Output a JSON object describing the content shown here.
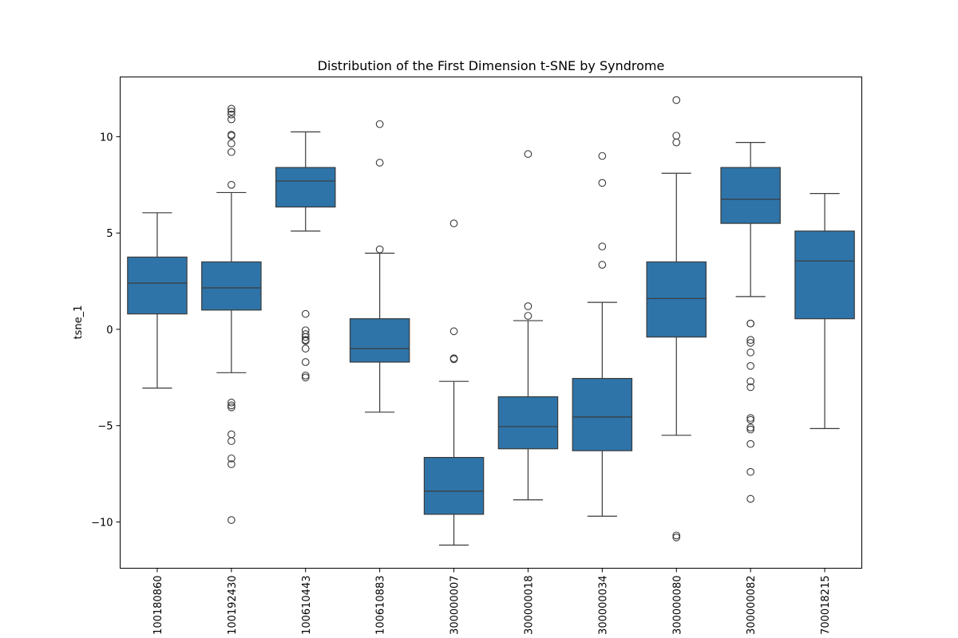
{
  "chart_data": {
    "type": "box",
    "title": "Distribution of the First Dimension t-SNE by Syndrome",
    "xlabel": "",
    "ylabel": "tsne_1",
    "ylim": [
      -12.4,
      13.1
    ],
    "yticks": [
      10,
      5,
      0,
      -5,
      -10
    ],
    "grid": false,
    "colors": {
      "box_fill": "#2e74a8",
      "line": "#3a3a3a",
      "axis": "#000000"
    },
    "categories": [
      "100180860",
      "100192430",
      "100610443",
      "100610883",
      "300000007",
      "300000018",
      "300000034",
      "300000080",
      "300000082",
      "700018215"
    ],
    "boxes": [
      {
        "category": "100180860",
        "whisker_low": -3.05,
        "q1": 0.8,
        "median": 2.4,
        "q3": 3.75,
        "whisker_high": 6.05,
        "outliers": []
      },
      {
        "category": "100192430",
        "whisker_low": -2.25,
        "q1": 1.0,
        "median": 2.15,
        "q3": 3.5,
        "whisker_high": 7.1,
        "outliers": [
          7.5,
          9.2,
          9.65,
          10.05,
          10.1,
          10.9,
          11.15,
          11.3,
          11.45,
          -3.8,
          -3.95,
          -4.05,
          -5.45,
          -5.8,
          -6.7,
          -7.0,
          -9.9
        ]
      },
      {
        "category": "100610443",
        "whisker_low": 5.1,
        "q1": 6.35,
        "median": 7.7,
        "q3": 8.4,
        "whisker_high": 10.25,
        "outliers": [
          0.8,
          -0.05,
          -0.25,
          -0.4,
          -0.55,
          -0.6,
          -1.0,
          -1.7,
          -2.4,
          -2.5
        ]
      },
      {
        "category": "100610883",
        "whisker_low": -4.3,
        "q1": -1.7,
        "median": -1.0,
        "q3": 0.55,
        "whisker_high": 3.95,
        "outliers": [
          10.65,
          8.65,
          4.15
        ]
      },
      {
        "category": "300000007",
        "whisker_low": -11.2,
        "q1": -9.6,
        "median": -8.4,
        "q3": -6.65,
        "whisker_high": -2.7,
        "outliers": [
          5.5,
          -0.1,
          -1.5,
          -1.55
        ]
      },
      {
        "category": "300000018",
        "whisker_low": -8.85,
        "q1": -6.2,
        "median": -5.05,
        "q3": -3.5,
        "whisker_high": 0.45,
        "outliers": [
          9.1,
          1.2,
          0.7
        ]
      },
      {
        "category": "300000034",
        "whisker_low": -9.7,
        "q1": -6.3,
        "median": -4.55,
        "q3": -2.55,
        "whisker_high": 1.4,
        "outliers": [
          9.0,
          7.6,
          4.3,
          3.35
        ]
      },
      {
        "category": "300000080",
        "whisker_low": -5.5,
        "q1": -0.4,
        "median": 1.6,
        "q3": 3.5,
        "whisker_high": 8.1,
        "outliers": [
          11.9,
          10.05,
          9.7,
          -10.7,
          -10.8
        ]
      },
      {
        "category": "300000082",
        "whisker_low": 1.7,
        "q1": 5.5,
        "median": 6.75,
        "q3": 8.4,
        "whisker_high": 9.7,
        "outliers": [
          0.3,
          0.3,
          -0.55,
          -0.7,
          -1.2,
          -1.9,
          -2.7,
          -3.0,
          -4.6,
          -4.7,
          -5.1,
          -5.2,
          -5.95,
          -7.4,
          -8.8
        ]
      },
      {
        "category": "700018215",
        "whisker_low": -5.15,
        "q1": 0.55,
        "median": 3.55,
        "q3": 5.1,
        "whisker_high": 7.05,
        "outliers": []
      }
    ]
  }
}
